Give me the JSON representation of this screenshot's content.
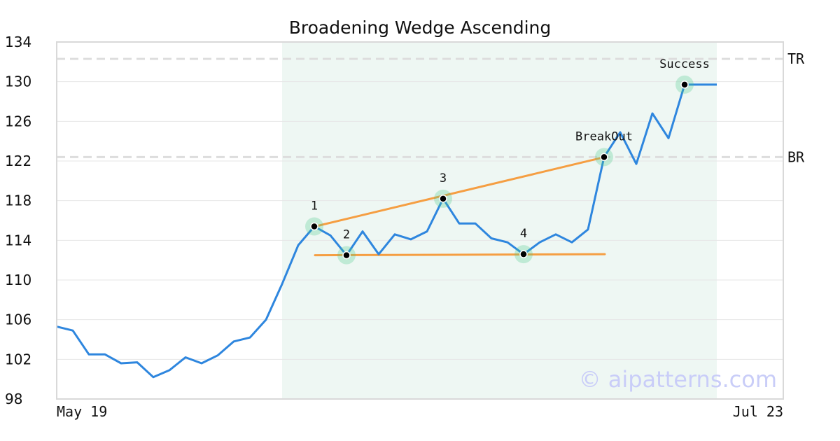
{
  "chart_data": {
    "type": "line",
    "title": "Broadening Wedge Ascending",
    "xlabel": "",
    "ylabel": "",
    "x_tick_labels": [
      "May 19",
      "Jul 23"
    ],
    "y_ticks": [
      98,
      102,
      106,
      110,
      114,
      118,
      122,
      126,
      130,
      134
    ],
    "ylim": [
      98,
      134
    ],
    "grid": true,
    "series": [
      {
        "color": "#2e86de",
        "values": [
          105.3,
          104.9,
          102.5,
          102.5,
          101.6,
          101.7,
          100.2,
          100.9,
          102.2,
          101.6,
          102.4,
          103.8,
          104.2,
          106.0,
          109.6,
          113.5,
          115.4,
          114.5,
          112.5,
          114.9,
          112.6,
          114.6,
          114.1,
          114.9,
          118.2,
          115.7,
          115.7,
          114.2,
          113.8,
          112.6,
          113.8,
          114.6,
          113.8,
          115.1,
          122.4,
          124.9,
          121.7,
          126.8,
          124.3,
          129.7,
          129.7,
          129.7
        ]
      }
    ],
    "highlight_region": {
      "start_index": 14,
      "end_index": 41,
      "color": "#eef7f3"
    },
    "trendlines": [
      {
        "color": "#f59e42",
        "from": {
          "index": 16,
          "y": 115.4
        },
        "to": {
          "index": 34,
          "y": 122.4
        }
      },
      {
        "color": "#f59e42",
        "from": {
          "index": 16,
          "y": 112.5
        },
        "to": {
          "index": 34,
          "y": 112.6
        }
      }
    ],
    "reference_lines": [
      {
        "label": "TR",
        "y": 132.3,
        "color": "#dddddd"
      },
      {
        "label": "BR",
        "y": 122.4,
        "color": "#dddddd"
      }
    ],
    "points": [
      {
        "label": "1",
        "index": 16,
        "y": 115.4
      },
      {
        "label": "2",
        "index": 18,
        "y": 112.5
      },
      {
        "label": "3",
        "index": 24,
        "y": 118.2
      },
      {
        "label": "4",
        "index": 29,
        "y": 112.6
      },
      {
        "label": "BreakOut",
        "index": 34,
        "y": 122.4
      },
      {
        "label": "Success",
        "index": 39,
        "y": 129.7
      }
    ],
    "watermark": "© aipatterns.com"
  }
}
